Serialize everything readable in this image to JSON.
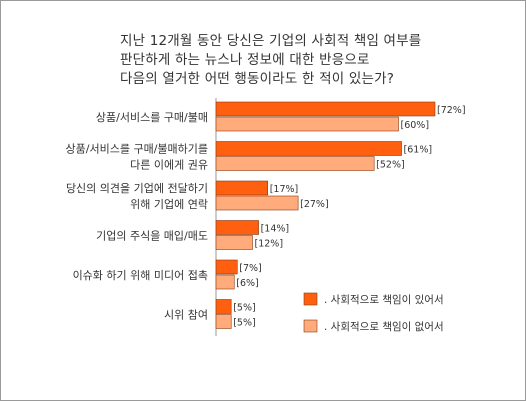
{
  "title_lines": [
    "지난 12개월 동안 당신은 기업의 사회적 책임 여부를",
    "판단하게 하는 뉴스나 정보에 대한 반응으로",
    "다음의 열거한 어떤 행동이라도 한 적이 있는가?"
  ],
  "chart_data": {
    "type": "bar",
    "orientation": "horizontal",
    "categories": [
      [
        "상품/서비스를 구매/불매"
      ],
      [
        "상품/서비스를 구매/불매하기를",
        "다른 이에게 권유"
      ],
      [
        "당신의 의견을 기업에 전달하기",
        "위해 기업에 연락"
      ],
      [
        "기업의 주식을 매입/매도"
      ],
      [
        "이슈화 하기 위해 미디어 접촉"
      ],
      [
        "시위 참여"
      ]
    ],
    "series": [
      {
        "name": ". 사회적으로 책임이 있어서",
        "values": [
          72,
          61,
          17,
          14,
          7,
          5
        ],
        "labels": [
          "[72%]",
          "[61%]",
          "[17%]",
          "[14%]",
          "[7%]",
          "[5%]"
        ],
        "color": "#ff6010"
      },
      {
        "name": ". 사회적으로 책임이 없어서",
        "values": [
          60,
          52,
          27,
          12,
          6,
          5
        ],
        "labels": [
          "[60%]",
          "[52%]",
          "[27%]",
          "[12%]",
          "[6%]",
          "[5%]"
        ],
        "color": "#ffab7c"
      }
    ],
    "legend_position": "bottom-right",
    "xlim": [
      0,
      72
    ]
  }
}
